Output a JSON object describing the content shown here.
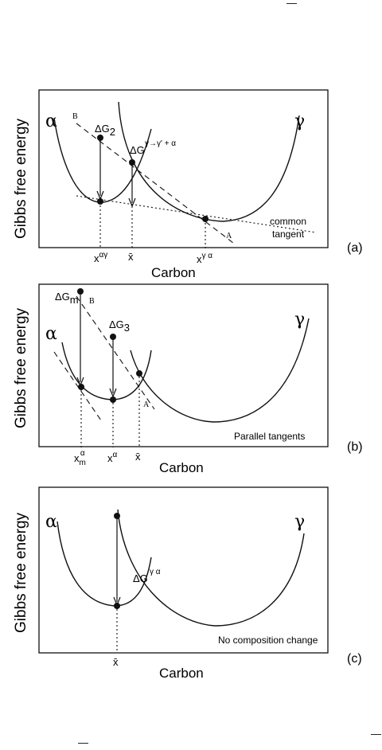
{
  "panels": {
    "a": {
      "ylabel": "Gibbs free energy",
      "xlabel": "Carbon",
      "tag": "(a)",
      "alpha": "α",
      "gamma": "γ",
      "point_b": "B",
      "point_a": "A",
      "dg_sym": "ΔG",
      "dg_sub": "2",
      "dg2_sym": "ΔG",
      "dg2_sup": "γ→γ' + α",
      "note1": "common",
      "note2": "tangent",
      "tick1_base": "x",
      "tick1_sup": "αγ",
      "tick2": "x̄",
      "tick3_base": "x",
      "tick3_sup": "γ α"
    },
    "b": {
      "ylabel": "Gibbs free energy",
      "xlabel": "Carbon",
      "tag": "(b)",
      "alpha": "α",
      "gamma": "γ",
      "point_b": "B",
      "point_a": "A",
      "dgm_sym": "ΔG",
      "dgm_sub": "m",
      "dg3_sym": "ΔG",
      "dg3_sub": "3",
      "note": "Parallel  tangents",
      "tick1_base": "x",
      "tick1_sub": "m",
      "tick1_sup": "α",
      "tick2_base": "x",
      "tick2_sup": "α",
      "tick3": "x̄"
    },
    "c": {
      "ylabel": "Gibbs free energy",
      "xlabel": "Carbon",
      "tag": "(c)",
      "alpha": "α",
      "gamma": "γ",
      "dg_sym": "ΔG",
      "dg_sup": "γ α",
      "note": "No composition change",
      "tick1": "x̄"
    }
  },
  "corner_marks": {
    "top": "—",
    "right": "—",
    "bottom": "—"
  }
}
